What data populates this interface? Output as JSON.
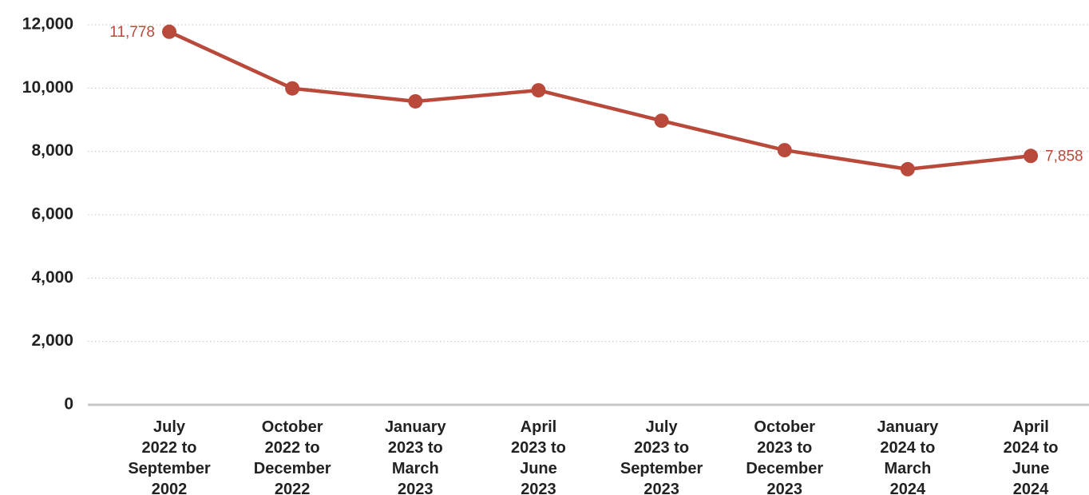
{
  "chart_data": {
    "type": "line",
    "categories": [
      "July\n2022 to\nSeptember\n2002",
      "October\n2022 to\nDecember\n2022",
      "January\n2023 to\nMarch\n2023",
      "April\n2023 to\nJune\n2023",
      "July\n2023 to\nSeptember\n2023",
      "October\n2023 to\nDecember\n2023",
      "January\n2024 to\nMarch\n2024",
      "April\n2024 to\nJune\n2024"
    ],
    "series": [
      {
        "color": "#b94a3b",
        "values": [
          11778,
          9990,
          9580,
          9930,
          8970,
          8040,
          7440,
          7858
        ],
        "value_labels": [
          "11,778",
          null,
          null,
          null,
          null,
          null,
          null,
          "7,858"
        ]
      }
    ],
    "ylim": [
      0,
      12000
    ],
    "yticks": [
      0,
      {
        "value": 2000,
        "label": "2,000"
      },
      {
        "value": 4000,
        "label": "4,000"
      },
      {
        "value": 6000,
        "label": "6,000"
      },
      {
        "value": 8000,
        "label": "8,000"
      },
      {
        "value": 10000,
        "label": "10,000"
      },
      {
        "value": 12000,
        "label": "12,000"
      }
    ],
    "grid": true
  }
}
